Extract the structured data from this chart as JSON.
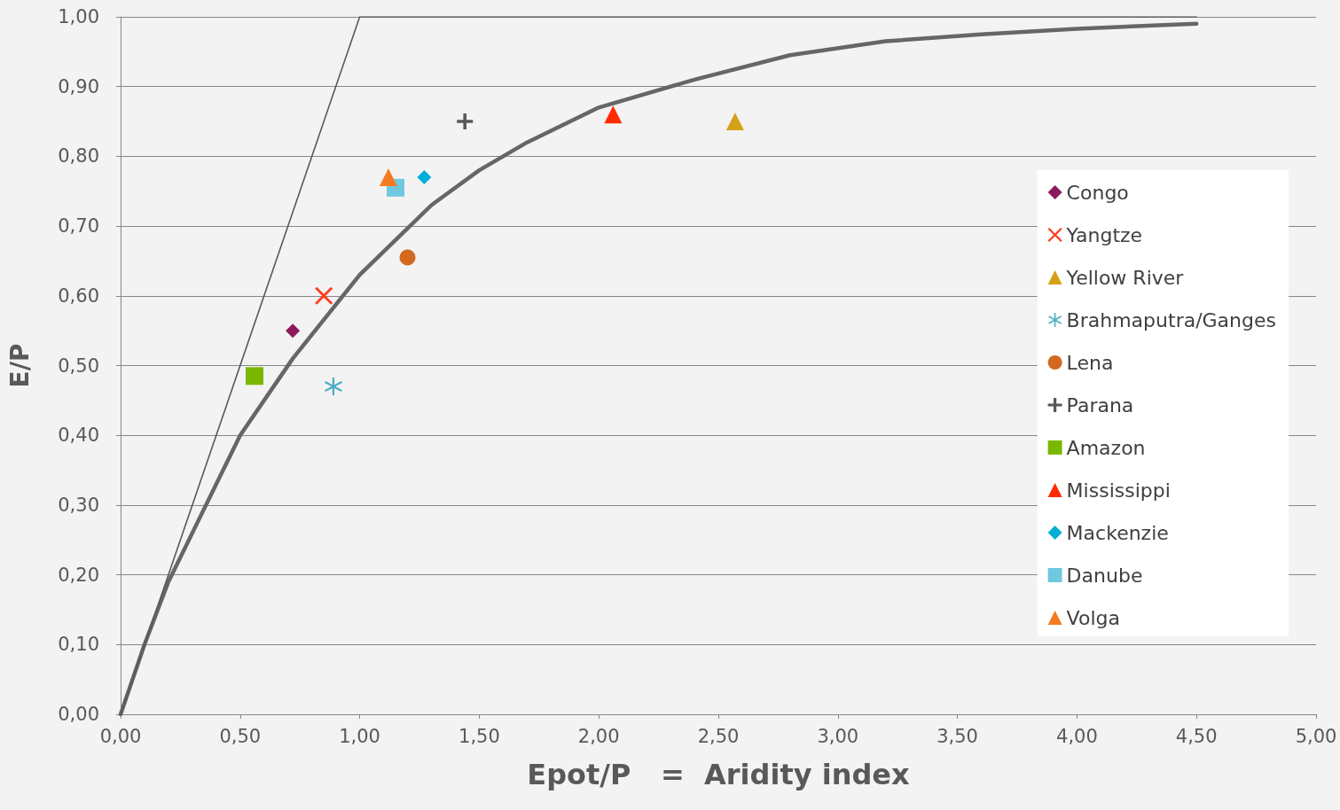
{
  "chart_data": {
    "type": "scatter",
    "xlabel": "Epot/P   =  Aridity index",
    "ylabel": "E/P",
    "xlim": [
      0,
      5
    ],
    "xticks": [
      {
        "value": 0,
        "label": "0,00"
      },
      {
        "value": 0.5,
        "label": "0,50"
      },
      {
        "value": 1,
        "label": "1,00"
      },
      {
        "value": 1.5,
        "label": "1,50"
      },
      {
        "value": 2,
        "label": "2,00"
      },
      {
        "value": 2.5,
        "label": "2,50"
      },
      {
        "value": 3,
        "label": "3,00"
      },
      {
        "value": 3.5,
        "label": "3,50"
      },
      {
        "value": 4,
        "label": "4,00"
      },
      {
        "value": 4.5,
        "label": "4,50"
      },
      {
        "value": 5,
        "label": "5,00"
      }
    ],
    "ylim": [
      0,
      1
    ],
    "yticks": [
      {
        "value": 0,
        "label": "0,00"
      },
      {
        "value": 0.1,
        "label": "0,10"
      },
      {
        "value": 0.2,
        "label": "0,20"
      },
      {
        "value": 0.3,
        "label": "0,30"
      },
      {
        "value": 0.4,
        "label": "0,40"
      },
      {
        "value": 0.5,
        "label": "0,50"
      },
      {
        "value": 0.6,
        "label": "0,60"
      },
      {
        "value": 0.7,
        "label": "0,70"
      },
      {
        "value": 0.8,
        "label": "0,80"
      },
      {
        "value": 0.9,
        "label": "0,90"
      },
      {
        "value": 1,
        "label": "1,00"
      }
    ],
    "grid": "y",
    "legend": "right",
    "series": [
      {
        "type": "line",
        "marker": "none",
        "color": "#666666",
        "x": [
          0,
          0.1,
          0.2,
          0.3,
          0.5,
          0.72,
          1.0,
          1.3,
          1.5,
          1.7,
          2.0,
          2.4,
          2.8,
          3.2,
          3.6,
          4.0,
          4.5
        ],
        "values": [
          0,
          0.1,
          0.19,
          0.26,
          0.4,
          0.51,
          0.63,
          0.73,
          0.78,
          0.82,
          0.87,
          0.91,
          0.945,
          0.965,
          0.975,
          0.983,
          0.99
        ]
      },
      {
        "type": "line",
        "marker": "none",
        "color": "#595959",
        "x": [
          0,
          1,
          4.5
        ],
        "values": [
          0,
          1,
          1
        ]
      },
      {
        "name": "Congo",
        "marker": "diamond",
        "color": "#8b1a5a",
        "x": [
          0.72
        ],
        "values": [
          0.55
        ]
      },
      {
        "name": "Yangtze",
        "marker": "x",
        "color": "#ff3b1f",
        "x": [
          0.85
        ],
        "values": [
          0.6
        ]
      },
      {
        "name": "Yellow River",
        "marker": "triangle",
        "color": "#d4a017",
        "x": [
          2.57
        ],
        "values": [
          0.85
        ]
      },
      {
        "name": "Brahmaputra/Ganges",
        "marker": "star",
        "color": "#4bacc6",
        "x": [
          0.89
        ],
        "values": [
          0.47
        ]
      },
      {
        "name": "Lena",
        "marker": "circle",
        "color": "#d2691e",
        "x": [
          1.2
        ],
        "values": [
          0.655
        ]
      },
      {
        "name": "Parana",
        "marker": "cross",
        "color": "#595959",
        "x": [
          1.44
        ],
        "values": [
          0.85
        ]
      },
      {
        "name": "Amazon",
        "marker": "square",
        "color": "#7ab800",
        "x": [
          0.56
        ],
        "values": [
          0.485
        ]
      },
      {
        "name": "Mississippi",
        "marker": "triangle",
        "color": "#ff2a00",
        "x": [
          2.06
        ],
        "values": [
          0.86
        ]
      },
      {
        "name": "Mackenzie",
        "marker": "diamond",
        "color": "#00b0d8",
        "x": [
          1.27
        ],
        "values": [
          0.77
        ]
      },
      {
        "name": "Danube",
        "marker": "square",
        "color": "#70c8e0",
        "x": [
          1.15
        ],
        "values": [
          0.755
        ]
      },
      {
        "name": "Volga",
        "marker": "triangle",
        "color": "#f47b20",
        "x": [
          1.12
        ],
        "values": [
          0.77
        ]
      }
    ]
  }
}
